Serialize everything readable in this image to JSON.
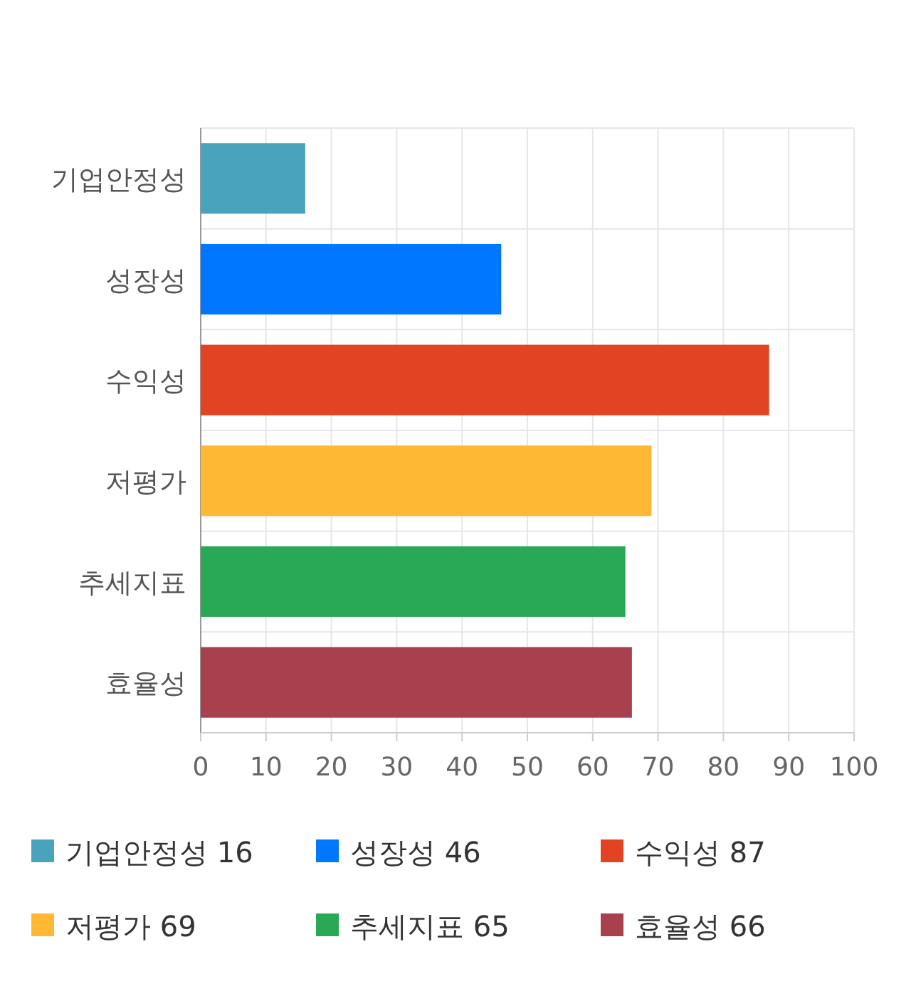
{
  "chart_data": {
    "type": "bar",
    "orientation": "horizontal",
    "categories": [
      "기업안정성",
      "성장성",
      "수익성",
      "저평가",
      "추세지표",
      "효율성"
    ],
    "series": [
      {
        "name": "기업안정성 16",
        "color": "#4aa3bd",
        "values": [
          16,
          null,
          null,
          null,
          null,
          null
        ]
      },
      {
        "name": "성장성 46",
        "color": "#0077ff",
        "values": [
          null,
          46,
          null,
          null,
          null,
          null
        ]
      },
      {
        "name": "수익성 87",
        "color": "#e24423",
        "values": [
          null,
          null,
          87,
          null,
          null,
          null
        ]
      },
      {
        "name": "저평가 69",
        "color": "#ffb833",
        "values": [
          null,
          null,
          null,
          69,
          null,
          null
        ]
      },
      {
        "name": "추세지표 65",
        "color": "#29a856",
        "values": [
          null,
          null,
          null,
          null,
          65,
          null
        ]
      },
      {
        "name": "효율성 66",
        "color": "#a8404e",
        "values": [
          null,
          null,
          null,
          null,
          null,
          66
        ]
      }
    ],
    "xlim": [
      0,
      100
    ],
    "xticks": [
      0,
      10,
      20,
      30,
      40,
      50,
      60,
      70,
      80,
      90,
      100
    ],
    "grid": true,
    "legend": "bottom"
  }
}
